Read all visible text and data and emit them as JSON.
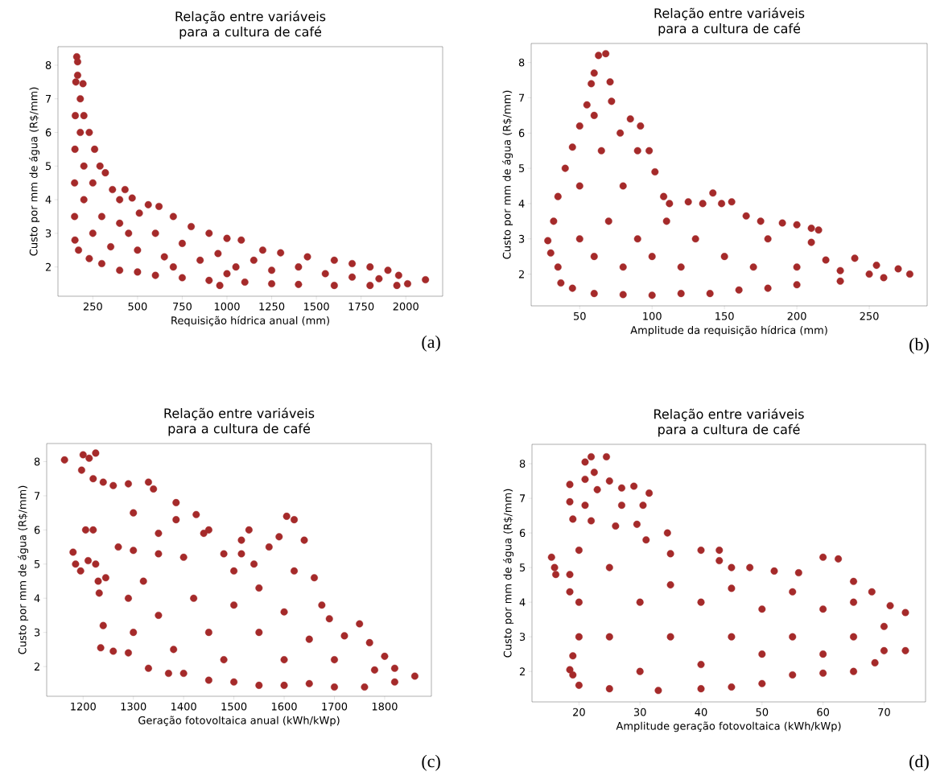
{
  "chart_data": [
    {
      "type": "scatter",
      "title": "Relação entre variáveis para a cultura de café",
      "xlabel": "Requisição hídrica anual (mm)",
      "ylabel": "Custo por mm de água (R$/mm)",
      "color": "#a52a2a",
      "marker": "circle",
      "xlim": [
        55,
        2206
      ],
      "ylim": [
        1.13,
        8.55
      ],
      "xticks": [
        250,
        500,
        750,
        1000,
        1250,
        1500,
        1750,
        2000
      ],
      "yticks": [
        2,
        3,
        4,
        5,
        6,
        7,
        8
      ],
      "annotations": [
        "(a)"
      ],
      "x": [
        160,
        165,
        165,
        195,
        180,
        200,
        230,
        260,
        290,
        320,
        360,
        400,
        430,
        470,
        510,
        560,
        620,
        700,
        800,
        900,
        1000,
        1080,
        1200,
        1300,
        1450,
        1600,
        1700,
        1800,
        1900,
        1960,
        2010,
        2110,
        150,
        170,
        230,
        300,
        400,
        500,
        600,
        750,
        900,
        960,
        1100,
        1250,
        1400,
        1600,
        1800,
        1950,
        148,
        148,
        150,
        152,
        155,
        200,
        250,
        300,
        350,
        450,
        500,
        600,
        650,
        750,
        850,
        950,
        1050,
        1150,
        1250,
        1400,
        1550,
        1700,
        1850,
        200,
        180,
        250,
        400,
        700,
        1000
      ],
      "values": [
        8.25,
        8.1,
        7.7,
        7.45,
        7.0,
        6.5,
        6.0,
        5.5,
        5.0,
        4.8,
        4.3,
        4.0,
        4.3,
        4.05,
        3.6,
        3.85,
        3.8,
        3.5,
        3.2,
        3.0,
        2.85,
        2.8,
        2.5,
        2.42,
        2.3,
        2.2,
        2.1,
        2.0,
        1.9,
        1.75,
        1.5,
        1.62,
        2.8,
        2.5,
        2.25,
        2.1,
        1.9,
        1.85,
        1.75,
        1.68,
        1.6,
        1.45,
        1.55,
        1.5,
        1.48,
        1.45,
        1.45,
        1.45,
        3.5,
        4.5,
        5.5,
        6.5,
        7.5,
        4.0,
        3.0,
        3.5,
        2.6,
        3.0,
        2.5,
        3.0,
        2.3,
        2.7,
        2.2,
        2.4,
        2.0,
        2.2,
        1.9,
        2.0,
        1.8,
        1.7,
        1.65,
        5.0,
        6.0,
        4.5,
        3.3,
        2.0,
        1.8
      ]
    },
    {
      "type": "scatter",
      "title": "Relação entre variáveis para a cultura de café",
      "xlabel": "Amplitude da requisição hídrica (mm)",
      "ylabel": "Custo por mm de água (R$/mm)",
      "color": "#a52a2a",
      "marker": "circle",
      "xlim": [
        16.5,
        290
      ],
      "ylim": [
        1.1,
        8.54
      ],
      "xticks": [
        50,
        100,
        150,
        200,
        250
      ],
      "yticks": [
        2,
        3,
        4,
        5,
        6,
        7,
        8
      ],
      "annotations": [
        "(b)"
      ],
      "x": [
        28,
        32,
        35,
        40,
        45,
        50,
        55,
        58,
        60,
        63,
        68,
        71,
        72,
        78,
        85,
        92,
        98,
        102,
        108,
        112,
        125,
        135,
        142,
        148,
        155,
        165,
        175,
        190,
        200,
        210,
        215,
        210,
        220,
        240,
        255,
        270,
        278,
        30,
        35,
        37,
        45,
        60,
        80,
        100,
        120,
        140,
        160,
        180,
        200,
        230,
        260,
        50,
        50,
        60,
        65,
        70,
        80,
        80,
        90,
        100,
        110,
        120,
        130,
        150,
        170,
        180,
        200,
        230,
        60,
        90,
        250
      ],
      "values": [
        2.95,
        3.5,
        4.2,
        5.0,
        5.6,
        6.2,
        6.8,
        7.4,
        7.7,
        8.2,
        8.25,
        7.45,
        6.9,
        6.0,
        6.4,
        6.2,
        5.5,
        4.9,
        4.2,
        4.0,
        4.05,
        4.0,
        4.3,
        4.0,
        4.05,
        3.65,
        3.5,
        3.45,
        3.4,
        3.3,
        3.25,
        2.9,
        2.4,
        2.45,
        2.25,
        2.15,
        2.0,
        2.6,
        2.2,
        1.75,
        1.6,
        1.45,
        1.42,
        1.4,
        1.45,
        1.45,
        1.55,
        1.6,
        1.7,
        1.8,
        1.9,
        3.0,
        4.5,
        2.5,
        5.5,
        3.5,
        4.5,
        2.2,
        3.0,
        2.5,
        3.5,
        2.2,
        3.0,
        2.5,
        2.2,
        3.0,
        2.2,
        2.1,
        6.5,
        5.5,
        2.0
      ]
    },
    {
      "type": "scatter",
      "title": "Relação entre variáveis para a cultura de café",
      "xlabel": "Geração fotovoltaica anual (kWh/kWp)",
      "ylabel": "Custo por mm de água (R$/mm)",
      "color": "#a52a2a",
      "marker": "circle",
      "xlim": [
        1127.5,
        1893
      ],
      "ylim": [
        1.13,
        8.53
      ],
      "xticks": [
        1200,
        1300,
        1400,
        1500,
        1600,
        1700,
        1800
      ],
      "yticks": [
        2,
        3,
        4,
        5,
        6,
        7,
        8
      ],
      "annotations": [
        "(c)"
      ],
      "x": [
        1163,
        1200,
        1212,
        1225,
        1197,
        1220,
        1240,
        1260,
        1290,
        1330,
        1340,
        1385,
        1425,
        1530,
        1205,
        1220,
        1180,
        1185,
        1195,
        1210,
        1225,
        1230,
        1232,
        1245,
        1240,
        1235,
        1260,
        1290,
        1330,
        1370,
        1515,
        1515,
        1385,
        1300,
        1350,
        1440,
        1300,
        1350,
        1400,
        1450,
        1480,
        1500,
        1540,
        1570,
        1590,
        1605,
        1620,
        1640,
        1660,
        1675,
        1690,
        1750,
        1770,
        1800,
        1820,
        1860,
        1400,
        1450,
        1500,
        1550,
        1600,
        1650,
        1700,
        1760,
        1820,
        1320,
        1350,
        1380,
        1420,
        1450,
        1480,
        1500,
        1550,
        1550,
        1600,
        1600,
        1620,
        1650,
        1700,
        1720,
        1780,
        1300,
        1270,
        1290
      ],
      "values": [
        8.05,
        8.2,
        8.1,
        8.25,
        7.75,
        7.5,
        7.4,
        7.3,
        7.35,
        7.4,
        7.2,
        6.8,
        6.45,
        6.0,
        6.0,
        6.0,
        5.35,
        5.0,
        4.8,
        5.1,
        5.0,
        4.5,
        4.15,
        4.6,
        3.2,
        2.55,
        2.45,
        2.4,
        1.95,
        1.8,
        5.7,
        5.3,
        6.3,
        6.5,
        5.9,
        5.9,
        5.4,
        5.3,
        5.2,
        6.0,
        5.3,
        4.8,
        5.0,
        5.5,
        5.8,
        6.4,
        6.3,
        5.7,
        4.6,
        3.8,
        3.4,
        3.25,
        2.7,
        2.3,
        1.95,
        1.72,
        1.8,
        1.6,
        1.55,
        1.45,
        1.45,
        1.5,
        1.4,
        1.4,
        1.55,
        4.5,
        3.5,
        2.5,
        4.0,
        3.0,
        2.2,
        3.8,
        3.0,
        4.3,
        2.2,
        3.6,
        4.8,
        2.8,
        2.2,
        2.9,
        1.9,
        3.0,
        5.5,
        4.0
      ]
    },
    {
      "type": "scatter",
      "title": "Relação entre variáveis para a cultura de café",
      "xlabel": "Amplitude geração fotovoltaica (kWh/kWp)",
      "ylabel": "Custo por mm de água (R$/mm)",
      "color": "#a52a2a",
      "marker": "circle",
      "xlim": [
        12.3,
        76.8
      ],
      "ylim": [
        1.12,
        8.56
      ],
      "xticks": [
        20,
        30,
        40,
        50,
        60,
        70
      ],
      "yticks": [
        2,
        3,
        4,
        5,
        6,
        7,
        8
      ],
      "annotations": [
        "(d)"
      ],
      "x": [
        15.5,
        16,
        16.2,
        18.5,
        18.5,
        19,
        18.5,
        18.5,
        19,
        18.5,
        19,
        21,
        22,
        24.5,
        22.5,
        21,
        21,
        22,
        23,
        25,
        27,
        29,
        31.5,
        30.5,
        29.5,
        34.5,
        31,
        35,
        40,
        43,
        43,
        45,
        48,
        52,
        56,
        60,
        62.5,
        65,
        68,
        71,
        73.5,
        73.5,
        70,
        68.5,
        65,
        60,
        55,
        50,
        45,
        40,
        33,
        25,
        20,
        20,
        20,
        20,
        25,
        25,
        26,
        30,
        30,
        35,
        35,
        40,
        40,
        45,
        45,
        50,
        50,
        55,
        55,
        60,
        60,
        65,
        65,
        70,
        27
      ],
      "values": [
        5.3,
        5.0,
        4.8,
        7.4,
        6.9,
        6.4,
        4.8,
        4.3,
        2.45,
        2.05,
        1.9,
        8.05,
        8.2,
        8.2,
        7.75,
        7.55,
        6.8,
        6.35,
        7.25,
        7.5,
        7.3,
        7.35,
        7.15,
        6.8,
        6.25,
        6.0,
        5.8,
        5.4,
        5.5,
        5.5,
        5.2,
        5.0,
        5.0,
        4.9,
        4.85,
        5.3,
        5.25,
        4.6,
        4.3,
        3.9,
        3.7,
        2.6,
        2.6,
        2.25,
        2.0,
        1.95,
        1.9,
        1.65,
        1.55,
        1.5,
        1.45,
        1.5,
        1.6,
        3.0,
        4.0,
        5.5,
        3.0,
        5.0,
        6.2,
        2.0,
        4.0,
        3.0,
        4.5,
        2.2,
        4.0,
        3.0,
        4.4,
        2.5,
        3.8,
        3.0,
        4.3,
        2.5,
        3.8,
        3.0,
        4.0,
        3.3,
        6.8
      ]
    }
  ]
}
